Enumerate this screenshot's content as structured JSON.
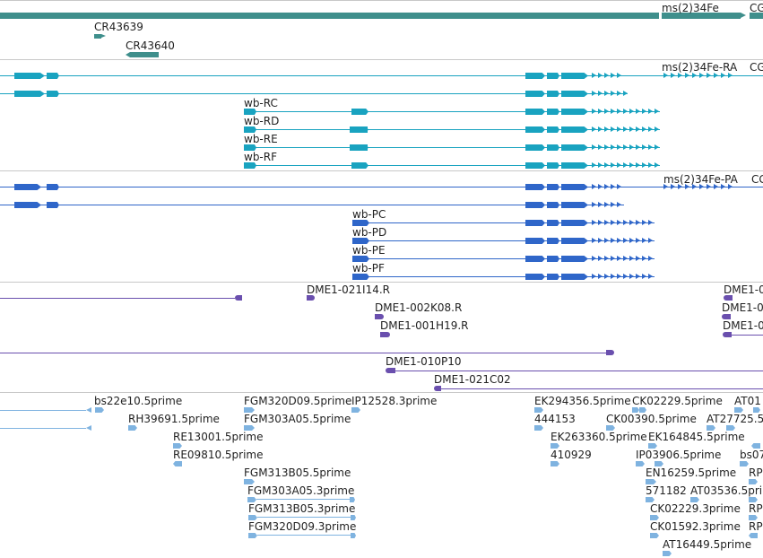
{
  "colors": {
    "gene": "#3f8f8c",
    "cdna_transcript": "#19a3c0",
    "protein": "#2f66c9",
    "clone": "#6a4fae",
    "est": "#7fb3e0",
    "divider": "#c8c8c8"
  },
  "tracks": {
    "genes": {
      "labels": [
        "ms(2)34Fe",
        "CG",
        "CR43639",
        "CR43640"
      ]
    },
    "transcripts": {
      "labels": [
        "ms(2)34Fe-RA",
        "CG",
        "wb-RC",
        "wb-RD",
        "wb-RE",
        "wb-RF"
      ]
    },
    "proteins": {
      "labels": [
        "ms(2)34Fe-PA",
        "CG",
        "wb-PC",
        "wb-PD",
        "wb-PE",
        "wb-PF"
      ]
    },
    "clones": {
      "labels": [
        "DME1-021I14.R",
        "DME1-0",
        "DME1-002K08.R",
        "DME1-0",
        "DME1-001H19.R",
        "DME1-0",
        "DME1-010P10",
        "DME1-021C02"
      ]
    },
    "ests": {
      "labels": [
        "bs22e10.5prime",
        "FGM320D09.5prime",
        "IP12528.3prime",
        "EK294356.5prime",
        "CK02229.5prime",
        "AT01",
        "RH39691.5prime",
        "FGM303A05.5prime",
        "444153",
        "CK00390.5prime",
        "AT27725.5",
        "RE13001.5prime",
        "EK263360.5prime",
        "EK164845.5prime",
        "RE09810.5prime",
        "410929",
        "IP03906.5prime",
        "bs07",
        "FGM313B05.5prime",
        "EN16259.5prime",
        "RP",
        "FGM303A05.3prime",
        "571182",
        "AT03536.5prime",
        "FGM313B05.3prime",
        "CK02229.3prime",
        "RP",
        "FGM320D09.3prime",
        "CK01592.3prime",
        "RP",
        "AT16449.5prime"
      ]
    }
  }
}
